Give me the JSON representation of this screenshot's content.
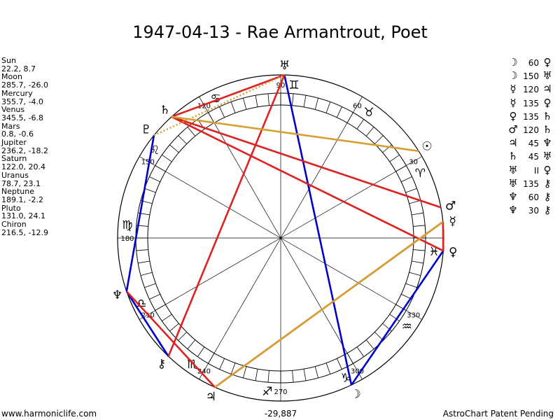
{
  "title": "1947-04-13 - Rae Armantrout, Poet",
  "planets": [
    {
      "name": "Sun",
      "glyph": "☉",
      "values": "22.2, 8.7",
      "lon": 22.2
    },
    {
      "name": "Moon",
      "glyph": "☽",
      "values": "285.7, -26.0",
      "lon": 285.7
    },
    {
      "name": "Mercury",
      "glyph": "☿",
      "values": "355.7, -4.0",
      "lon": 355.7
    },
    {
      "name": "Venus",
      "glyph": "♀",
      "values": "345.5, -6.8",
      "lon": 345.5
    },
    {
      "name": "Mars",
      "glyph": "♂",
      "values": "0.8, -0.6",
      "lon": 0.8
    },
    {
      "name": "Jupiter",
      "glyph": "♃",
      "values": "236.2, -18.2",
      "lon": 236.2
    },
    {
      "name": "Saturn",
      "glyph": "♄",
      "values": "122.0, 20.4",
      "lon": 122.0
    },
    {
      "name": "Uranus",
      "glyph": "♅",
      "values": "78.7, 23.1",
      "lon": 78.7
    },
    {
      "name": "Neptune",
      "glyph": "♆",
      "values": "189.1, -2.2",
      "lon": 189.1
    },
    {
      "name": "Pluto",
      "glyph": "♇",
      "values": "131.0, 24.1",
      "lon": 131.0
    },
    {
      "name": "Chiron",
      "glyph": "⚷",
      "values": "216.5, -12.9",
      "lon": 216.5
    }
  ],
  "aspects": [
    {
      "p1": "Moon",
      "orb": "60",
      "p2": "Venus",
      "color": "#0000cc"
    },
    {
      "p1": "Moon",
      "orb": "150",
      "p2": "Uranus",
      "color": "#cc0000"
    },
    {
      "p1": "Mercury",
      "orb": "120",
      "p2": "Jupiter",
      "color": "#dd2222"
    },
    {
      "p1": "Mercury",
      "orb": "135",
      "p2": "Venus",
      "color": "#dd2222"
    },
    {
      "p1": "Venus",
      "orb": "135",
      "p2": "Saturn",
      "color": "#dd2222"
    },
    {
      "p1": "Mars",
      "orb": "120",
      "p2": "Saturn",
      "color": "#dd2222"
    },
    {
      "p1": "Jupiter",
      "orb": "45",
      "p2": "Neptune",
      "color": "#dd2222"
    },
    {
      "p1": "Saturn",
      "orb": "45",
      "p2": "Uranus",
      "color": "#dd2222"
    },
    {
      "p1": "Uranus",
      "orb": "II",
      "p2": "Venus",
      "color": "#d4a030"
    },
    {
      "p1": "Uranus",
      "orb": "135",
      "p2": "Chiron",
      "color": "#dd2222"
    },
    {
      "p1": "Neptune",
      "orb": "60",
      "p2": "Chiron",
      "color": "#0000cc"
    },
    {
      "p1": "Neptune",
      "orb": "30",
      "p2": "Chiron",
      "color": "#0000cc"
    }
  ],
  "glyph_map": {
    "Sun": "☉",
    "Moon": "☽",
    "Mercury": "☿",
    "Venus": "♀",
    "Mars": "♂",
    "Jupiter": "♃",
    "Saturn": "♄",
    "Uranus": "♅",
    "Neptune": "♆",
    "Pluto": "♇",
    "Chiron": "⚷"
  },
  "signs": [
    "♈",
    "♉",
    "♊",
    "♋",
    "♌",
    "♍",
    "♎",
    "♏",
    "♐",
    "♑",
    "♒",
    "♓"
  ],
  "degree_labels": [
    "90",
    "60",
    "30",
    "",
    "330",
    "300",
    "270",
    "240",
    "210",
    "180",
    "150",
    "120"
  ],
  "degree_values": [
    90,
    60,
    30,
    0,
    330,
    300,
    270,
    240,
    210,
    180,
    150,
    120
  ],
  "chart_lines": [
    {
      "from": "Uranus",
      "to": "Moon",
      "color": "#0000cc",
      "style": "solid"
    },
    {
      "from": "Moon",
      "to": "Venus",
      "color": "#0000cc",
      "style": "solid"
    },
    {
      "from": "Neptune",
      "to": "Chiron",
      "color": "#0000cc",
      "style": "solid"
    },
    {
      "from": "Pluto",
      "to": "Neptune",
      "color": "#0000cc",
      "style": "solid"
    },
    {
      "from": "Saturn",
      "to": "Uranus",
      "color": "#dd2222",
      "style": "solid"
    },
    {
      "from": "Uranus",
      "to": "Chiron",
      "color": "#dd2222",
      "style": "solid"
    },
    {
      "from": "Saturn",
      "to": "Venus",
      "color": "#dd2222",
      "style": "solid"
    },
    {
      "from": "Saturn",
      "to": "Mars",
      "color": "#dd2222",
      "style": "solid"
    },
    {
      "from": "Mercury",
      "to": "Jupiter",
      "color": "#dd2222",
      "style": "solid"
    },
    {
      "from": "Jupiter",
      "to": "Neptune",
      "color": "#dd2222",
      "style": "solid"
    },
    {
      "from": "Mercury",
      "to": "Venus",
      "color": "#dd2222",
      "style": "solid"
    },
    {
      "from": "Saturn",
      "to": "Sun",
      "color": "#d4a030",
      "style": "solid"
    },
    {
      "from": "Jupiter",
      "to": "Mercury",
      "color": "#d4a030",
      "style": "solid"
    },
    {
      "from": "Pluto",
      "to": "Uranus",
      "color": "#d4a030",
      "style": "dotted"
    }
  ],
  "footer": {
    "left": "www.harmoniclife.com",
    "center": "-29,887",
    "right": "AstroChart Patent Pending"
  }
}
